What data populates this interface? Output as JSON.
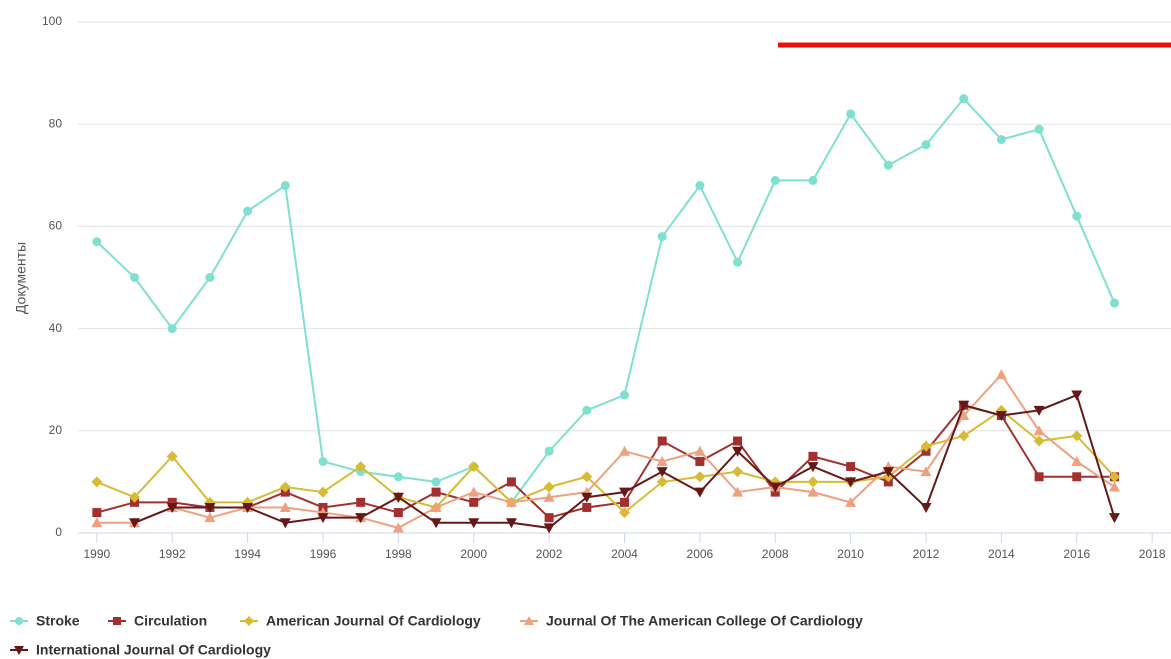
{
  "chart_data": {
    "type": "line",
    "y_label": "Документы",
    "x": [
      1990,
      1991,
      1992,
      1993,
      1994,
      1995,
      1996,
      1997,
      1998,
      1999,
      2000,
      2001,
      2002,
      2003,
      2004,
      2005,
      2006,
      2007,
      2008,
      2009,
      2010,
      2011,
      2012,
      2013,
      2014,
      2015,
      2016,
      2017
    ],
    "xlim": [
      1989.5,
      2018.5
    ],
    "xticks": [
      1990,
      1992,
      1994,
      1996,
      1998,
      2000,
      2002,
      2004,
      2006,
      2008,
      2010,
      2012,
      2014,
      2016,
      2018
    ],
    "ylim": [
      0,
      100
    ],
    "yticks": [
      0,
      20,
      40,
      60,
      80,
      100
    ],
    "grid": true,
    "legend": "bottom",
    "series": [
      {
        "name": "Stroke",
        "color": "#7fe0cf",
        "marker": "circle",
        "values": [
          57,
          50,
          40,
          50,
          63,
          68,
          14,
          12,
          11,
          10,
          13,
          6,
          16,
          24,
          27,
          58,
          68,
          53,
          69,
          69,
          82,
          72,
          76,
          85,
          77,
          79,
          62,
          45
        ]
      },
      {
        "name": "Circulation",
        "color": "#a32f2f",
        "marker": "square",
        "values": [
          4,
          6,
          6,
          5,
          5,
          8,
          5,
          6,
          4,
          8,
          6,
          10,
          3,
          5,
          6,
          18,
          14,
          18,
          8,
          15,
          13,
          10,
          16,
          25,
          23,
          11,
          11,
          11
        ]
      },
      {
        "name": "American Journal Of Cardiology",
        "color": "#d8bb34",
        "marker": "diamond",
        "values": [
          10,
          7,
          15,
          6,
          6,
          9,
          8,
          13,
          7,
          5,
          13,
          6,
          9,
          11,
          4,
          10,
          11,
          12,
          10,
          10,
          10,
          11,
          17,
          19,
          24,
          18,
          19,
          11
        ]
      },
      {
        "name": "Journal Of The American College Of Cardiology",
        "color": "#eea17f",
        "marker": "triangle",
        "values": [
          2,
          2,
          5,
          3,
          5,
          5,
          4,
          3,
          1,
          5,
          8,
          6,
          7,
          8,
          16,
          14,
          16,
          8,
          9,
          8,
          6,
          13,
          12,
          23,
          31,
          20,
          14,
          9
        ]
      },
      {
        "name": "International Journal Of Cardiology",
        "color": "#661818",
        "marker": "triangle-down",
        "values": [
          null,
          2,
          5,
          5,
          5,
          2,
          3,
          3,
          7,
          2,
          2,
          2,
          1,
          7,
          8,
          12,
          8,
          16,
          9,
          13,
          10,
          12,
          5,
          25,
          23,
          24,
          27,
          3
        ]
      }
    ]
  }
}
